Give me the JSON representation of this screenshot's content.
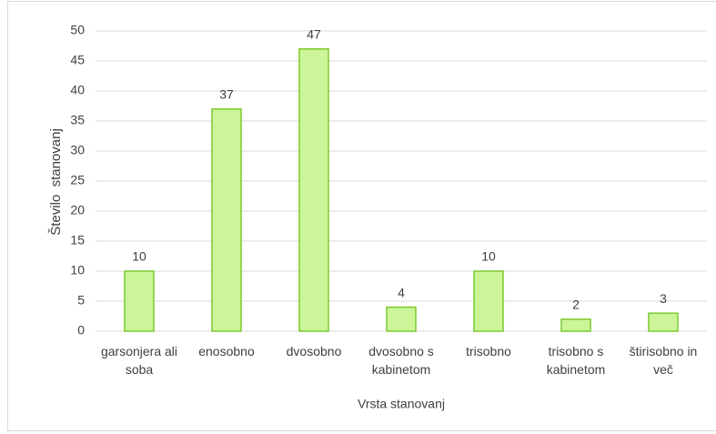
{
  "chart_data": {
    "type": "bar",
    "categories": [
      "garsonjera ali soba",
      "enosobno",
      "dvosobno",
      "dvosobno s kabinetom",
      "trisobno",
      "trisobno s kabinetom",
      "štirisobno in več"
    ],
    "values": [
      10,
      37,
      47,
      4,
      10,
      2,
      3
    ],
    "color": "#ccf59a",
    "edge_color": "#7cc92e",
    "x_label": "Vrsta stanovanj",
    "y_label": "Število  stanovanj",
    "ylim": [
      0,
      50
    ],
    "yticks": [
      0,
      5,
      10,
      15,
      20,
      25,
      30,
      35,
      40,
      45,
      50
    ],
    "grid": true
  }
}
